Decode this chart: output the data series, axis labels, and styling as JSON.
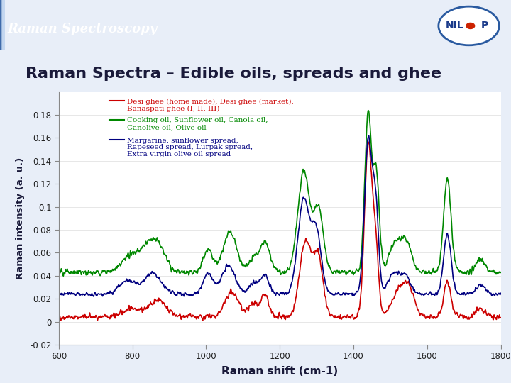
{
  "title": "Raman Spectra – Edible oils, spreads and ghee",
  "header": "Raman Spectroscopy",
  "xlabel": "Raman shift (cm-1)",
  "ylabel": "Raman intensity (a. u.)",
  "header_color_left": "#2a5aa0",
  "header_color_right": "#c5d8f0",
  "background_color": "#f0f4fb",
  "plot_bg": "white",
  "xlim": [
    600,
    1800
  ],
  "ylim": [
    -0.02,
    0.2
  ],
  "yticks": [
    -0.02,
    0,
    0.02,
    0.04,
    0.06,
    0.08,
    0.1,
    0.12,
    0.14,
    0.16,
    0.18
  ],
  "xticks": [
    600,
    800,
    1000,
    1200,
    1400,
    1600,
    1800
  ],
  "legend_entries": [
    {
      "label1": "Desi ghee (home made), Desi ghee (market),",
      "label2": "Banaspati ghee (I, II, III)",
      "color": "#cc0000"
    },
    {
      "label1": "Cooking oil, Sunflower oil, Canola oil,",
      "label2": "Canolive oil, Olive oil",
      "color": "#008800"
    },
    {
      "label1": "Margarine, sunflower spread,",
      "label2": "Rapeseed spread, Lurpak spread,",
      "label3": "Extra virgin olive oil spread",
      "color": "#000080"
    }
  ],
  "line_colors": [
    "#cc0000",
    "#008800",
    "#000080"
  ],
  "line_width": 1.2
}
